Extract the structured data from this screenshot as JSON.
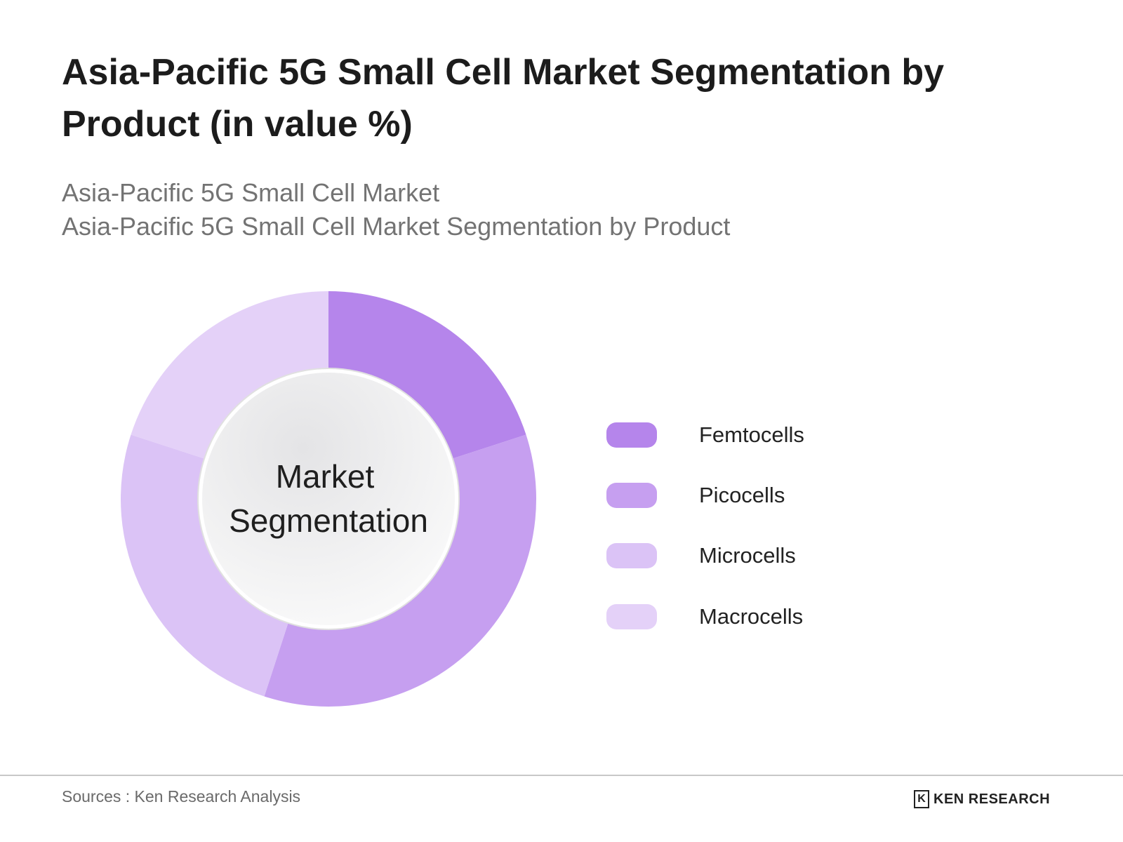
{
  "title": "Asia-Pacific 5G Small Cell Market Segmentation by Product (in value %)",
  "subtitle_lines": [
    "Asia-Pacific 5G Small Cell Market",
    "Asia-Pacific 5G Small Cell Market Segmentation by Product"
  ],
  "chart_data": {
    "type": "pie",
    "variant": "donut",
    "center_label": [
      "Market",
      "Segmentation"
    ],
    "categories": [
      "Femtocells",
      "Picocells",
      "Microcells",
      "Macrocells"
    ],
    "values": [
      20,
      35,
      25,
      20
    ],
    "colors": [
      "#b585eb",
      "#c69ff0",
      "#dbc3f6",
      "#e4d1f8"
    ],
    "legend_position": "right"
  },
  "footer": {
    "source": "Sources : Ken Research Analysis",
    "logo_text": "KEN RESEARCH",
    "logo_mark": "K"
  }
}
